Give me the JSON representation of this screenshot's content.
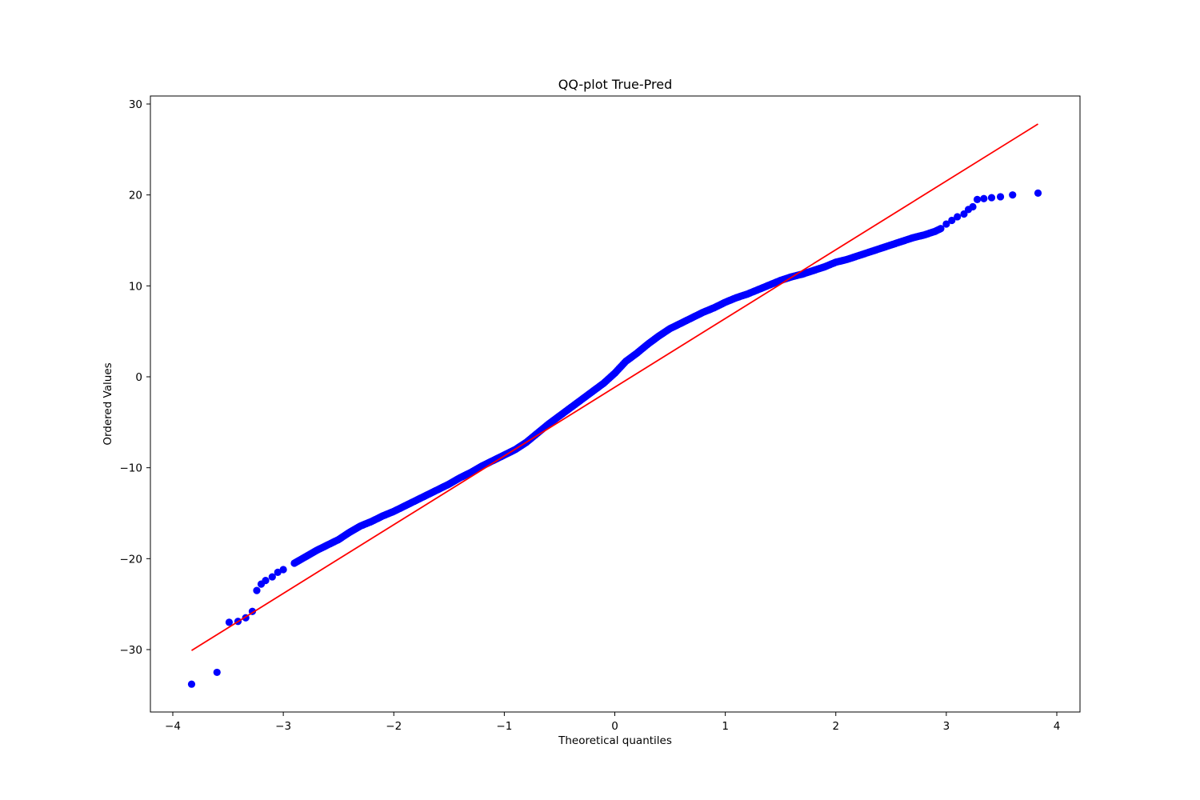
{
  "chart_data": {
    "type": "scatter",
    "title": "QQ-plot True-Pred",
    "xlabel": "Theoretical quantiles",
    "ylabel": "Ordered Values",
    "xlim": [
      -4.0,
      4.0
    ],
    "ylim": [
      -37,
      30
    ],
    "xticks": [
      -4,
      -3,
      -2,
      -1,
      0,
      1,
      2,
      3,
      4
    ],
    "yticks": [
      -30,
      -20,
      -10,
      0,
      10,
      20,
      30
    ],
    "xtick_labels": [
      "−4",
      "−3",
      "−2",
      "−1",
      "0",
      "1",
      "2",
      "3",
      "4"
    ],
    "ytick_labels": [
      "−30",
      "−20",
      "−10",
      "0",
      "10",
      "20",
      "30"
    ],
    "grid": false,
    "colors": {
      "points": "#0000ff",
      "fit_line": "#ff0000"
    },
    "fit_line": {
      "x": [
        -3.83,
        3.83
      ],
      "y": [
        -30.1,
        27.8
      ]
    },
    "series": [
      {
        "marker": "circle",
        "x": [
          -3.83,
          -3.6,
          -3.49,
          -3.41,
          -3.34,
          -3.28,
          -3.24,
          -3.2,
          -3.16,
          -3.1,
          -3.05,
          -3.0,
          -2.9,
          -2.8,
          -2.7,
          -2.6,
          -2.5,
          -2.4,
          -2.3,
          -2.2,
          -2.1,
          -2.0,
          -1.9,
          -1.8,
          -1.7,
          -1.6,
          -1.5,
          -1.4,
          -1.3,
          -1.2,
          -1.1,
          -1.0,
          -0.9,
          -0.8,
          -0.7,
          -0.6,
          -0.5,
          -0.4,
          -0.3,
          -0.2,
          -0.1,
          0.0,
          0.1,
          0.2,
          0.3,
          0.4,
          0.5,
          0.6,
          0.7,
          0.8,
          0.9,
          1.0,
          1.1,
          1.2,
          1.3,
          1.4,
          1.5,
          1.6,
          1.7,
          1.8,
          1.9,
          2.0,
          2.1,
          2.2,
          2.3,
          2.4,
          2.5,
          2.6,
          2.7,
          2.8,
          2.9,
          2.95,
          3.0,
          3.05,
          3.1,
          3.16,
          3.2,
          3.24,
          3.28,
          3.34,
          3.41,
          3.49,
          3.6,
          3.83
        ],
        "y": [
          -33.8,
          -32.5,
          -27.0,
          -26.9,
          -26.5,
          -25.8,
          -23.5,
          -22.8,
          -22.4,
          -22.0,
          -21.5,
          -21.2,
          -20.5,
          -19.8,
          -19.1,
          -18.5,
          -17.9,
          -17.1,
          -16.4,
          -15.9,
          -15.3,
          -14.8,
          -14.2,
          -13.6,
          -13.0,
          -12.4,
          -11.8,
          -11.1,
          -10.5,
          -9.8,
          -9.2,
          -8.6,
          -8.0,
          -7.2,
          -6.2,
          -5.2,
          -4.3,
          -3.4,
          -2.5,
          -1.6,
          -0.7,
          0.4,
          1.7,
          2.6,
          3.6,
          4.5,
          5.3,
          5.9,
          6.5,
          7.1,
          7.6,
          8.2,
          8.7,
          9.1,
          9.6,
          10.1,
          10.6,
          11.0,
          11.3,
          11.7,
          12.1,
          12.6,
          12.9,
          13.3,
          13.7,
          14.1,
          14.5,
          14.9,
          15.3,
          15.6,
          16.0,
          16.3,
          16.8,
          17.2,
          17.6,
          17.9,
          18.4,
          18.7,
          19.5,
          19.6,
          19.7,
          19.8,
          20.0,
          20.2
        ]
      }
    ]
  }
}
